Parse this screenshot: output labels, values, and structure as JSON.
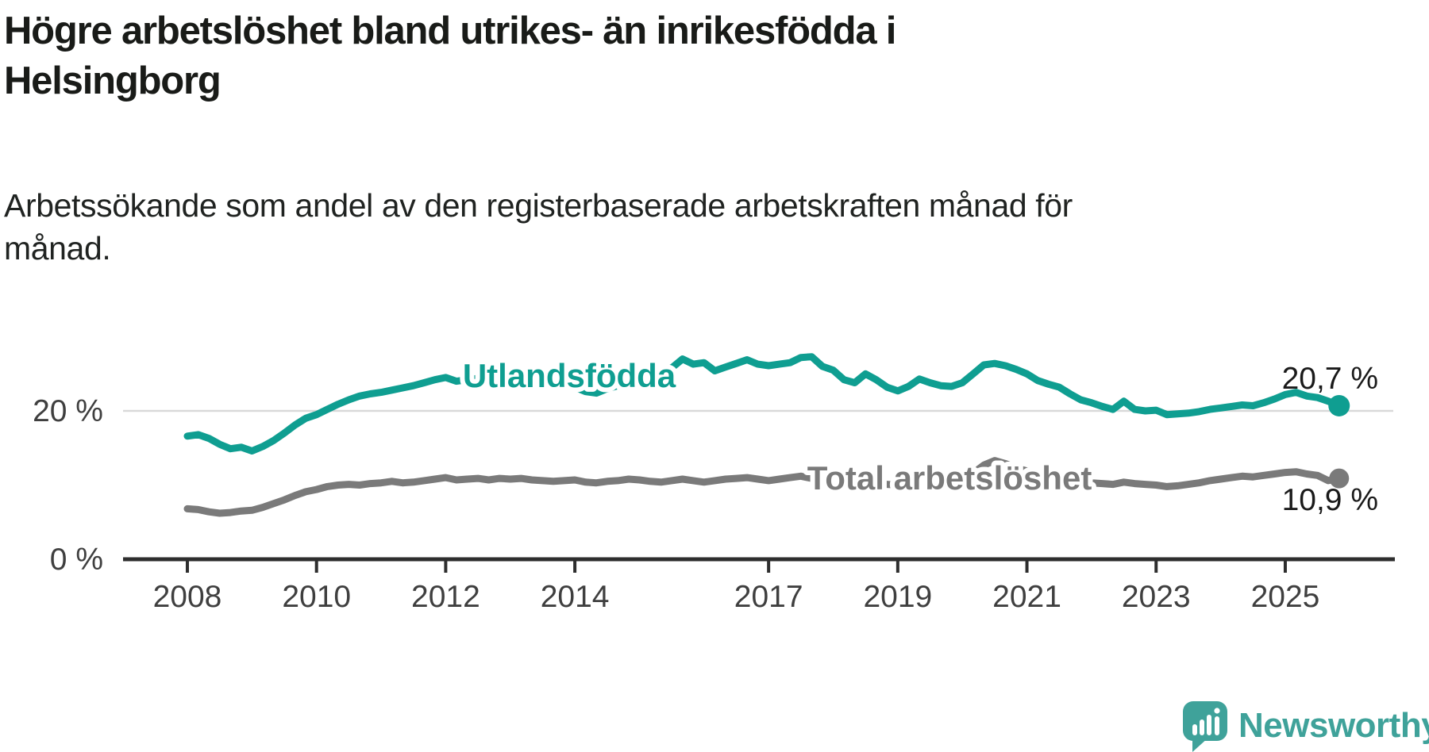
{
  "header": {
    "title": "Högre arbetslöshet bland utrikes- än inrikesfödda i Helsingborg",
    "title_lines": [
      "Högre arbetslöshet bland utrikes- än inrikesfödda i",
      "Helsingborg"
    ],
    "subtitle": "Arbetssökande som andel av den registerbaserade arbetskraften månad för månad.",
    "subtitle_lines": [
      "Arbetssökande som andel av den registerbaserade arbetskraften månad för",
      "månad."
    ]
  },
  "chart_data": {
    "type": "line",
    "title": "Högre arbetslöshet bland utrikes- än inrikesfödda i Helsingborg",
    "xlabel": "",
    "ylabel": "Arbetssökande som andel av den registerbaserade arbetskraften",
    "x_unit": "year-monthly",
    "x_start_year": 2008,
    "x_step_years": 0.1666667,
    "x_end_year": 2025.8333,
    "ylim": [
      0,
      30
    ],
    "grid": "single-horizontal-gridline-at-20",
    "legend_position": "inline-labels-on-lines",
    "x_ticks": [
      {
        "label": "2008",
        "year": 2008
      },
      {
        "label": "2010",
        "year": 2010
      },
      {
        "label": "2012",
        "year": 2012
      },
      {
        "label": "2014",
        "year": 2014
      },
      {
        "label": "2017",
        "year": 2017
      },
      {
        "label": "2019",
        "year": 2019
      },
      {
        "label": "2021",
        "year": 2021
      },
      {
        "label": "2023",
        "year": 2023
      },
      {
        "label": "2025",
        "year": 2025
      }
    ],
    "y_ticks": [
      {
        "label": "0 %",
        "value": 0,
        "gridline": false
      },
      {
        "label": "20 %",
        "value": 20,
        "gridline": true
      }
    ],
    "series": [
      {
        "name": "Utlandsfödda",
        "color": "#0f9e91",
        "end_label": "20,7 %",
        "end_value": 20.7,
        "values": [
          16.6,
          16.8,
          16.3,
          15.5,
          14.9,
          15.1,
          14.6,
          15.2,
          16.0,
          17.0,
          18.1,
          19.0,
          19.5,
          20.2,
          20.9,
          21.5,
          22.0,
          22.3,
          22.5,
          22.8,
          23.1,
          23.4,
          23.8,
          24.2,
          24.5,
          24.0,
          24.2,
          24.4,
          24.1,
          24.3,
          24.2,
          24.4,
          24.1,
          23.9,
          23.7,
          23.4,
          23.2,
          22.6,
          22.4,
          23.0,
          23.4,
          23.9,
          24.4,
          24.9,
          25.4,
          25.8,
          27.0,
          26.3,
          26.5,
          25.4,
          25.9,
          26.4,
          26.9,
          26.3,
          26.1,
          26.3,
          26.5,
          27.2,
          27.3,
          26.0,
          25.5,
          24.2,
          23.8,
          25.0,
          24.2,
          23.2,
          22.7,
          23.3,
          24.3,
          23.8,
          23.4,
          23.3,
          23.8,
          25.0,
          26.2,
          26.4,
          26.1,
          25.6,
          25.0,
          24.1,
          23.6,
          23.2,
          22.3,
          21.5,
          21.1,
          20.6,
          20.2,
          21.3,
          20.2,
          20.0,
          20.1,
          19.5,
          19.6,
          19.7,
          19.9,
          20.2,
          20.4,
          20.6,
          20.8,
          20.7,
          21.1,
          21.6,
          22.2,
          22.5,
          22.0,
          21.8,
          21.3,
          20.7
        ]
      },
      {
        "name": "Total arbetslöshet",
        "color": "#7a7a7a",
        "end_label": "10,9 %",
        "end_value": 10.9,
        "values": [
          6.8,
          6.7,
          6.4,
          6.2,
          6.3,
          6.5,
          6.6,
          7.0,
          7.5,
          8.0,
          8.6,
          9.1,
          9.4,
          9.8,
          10.0,
          10.1,
          10.0,
          10.2,
          10.3,
          10.5,
          10.3,
          10.4,
          10.6,
          10.8,
          11.0,
          10.7,
          10.8,
          10.9,
          10.7,
          10.9,
          10.8,
          10.9,
          10.7,
          10.6,
          10.5,
          10.6,
          10.7,
          10.4,
          10.3,
          10.5,
          10.6,
          10.8,
          10.7,
          10.5,
          10.4,
          10.6,
          10.8,
          10.6,
          10.4,
          10.6,
          10.8,
          10.9,
          11.0,
          10.8,
          10.6,
          10.8,
          11.0,
          11.2,
          10.9,
          10.6,
          10.4,
          10.6,
          10.8,
          10.6,
          10.3,
          10.1,
          10.0,
          10.2,
          10.4,
          10.3,
          10.2,
          10.4,
          10.7,
          11.6,
          12.7,
          13.3,
          12.9,
          12.3,
          11.9,
          11.5,
          11.2,
          10.9,
          10.6,
          10.4,
          10.3,
          10.2,
          10.1,
          10.4,
          10.2,
          10.1,
          10.0,
          9.8,
          9.9,
          10.1,
          10.3,
          10.6,
          10.8,
          11.0,
          11.2,
          11.1,
          11.3,
          11.5,
          11.7,
          11.8,
          11.5,
          11.3,
          10.6,
          10.9
        ]
      }
    ]
  },
  "footer": {
    "logo_text": "Newsworthy"
  },
  "colors": {
    "teal": "#0f9e91",
    "gray": "#7a7a7a",
    "logo_teal": "#3fa29a",
    "axis": "#2e2e2e",
    "grid": "#d9d9d9",
    "tick_text": "#3f3f3f",
    "value_text": "#1a1a1a",
    "title_text": "#191b18"
  }
}
